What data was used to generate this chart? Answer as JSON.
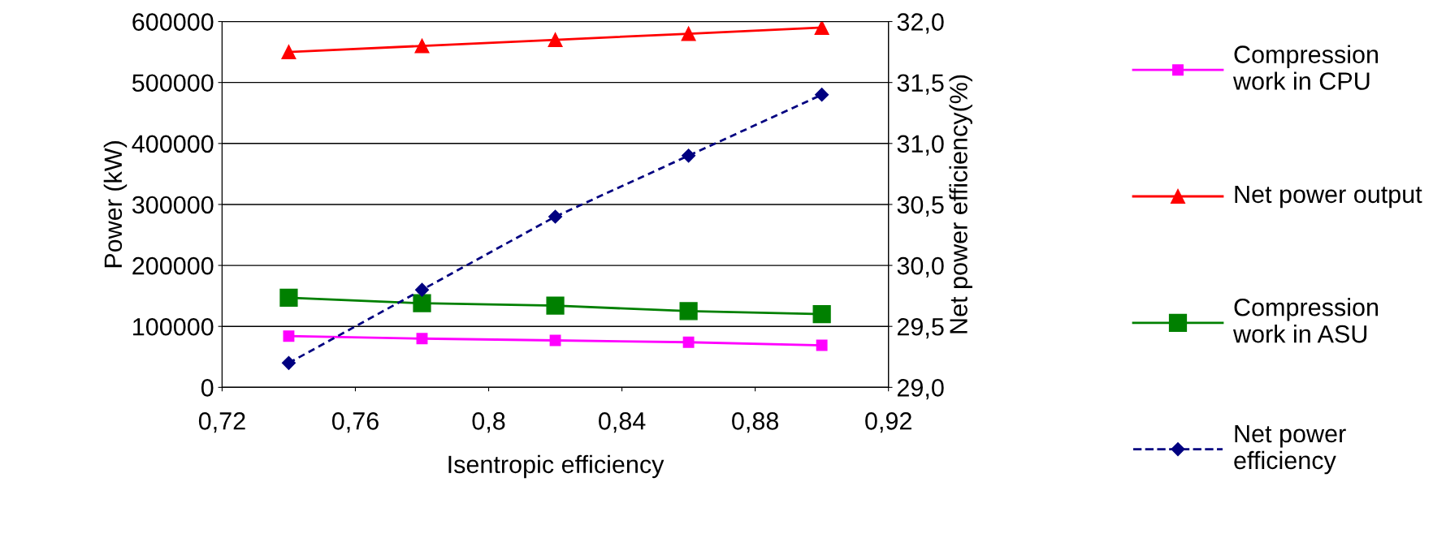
{
  "chart_data": {
    "type": "line",
    "xlabel": "Isentropic efficiency",
    "ylabel": "Power (kW)",
    "y2label": "Net power efficiency(%)",
    "x": [
      0.74,
      0.78,
      0.82,
      0.86,
      0.9
    ],
    "series": [
      {
        "name": "Compression work in CPU",
        "color": "#ff00ff",
        "marker": "square",
        "line_style": "solid",
        "values": [
          84000,
          80000,
          77000,
          74000,
          69000
        ]
      },
      {
        "name": "Net power output",
        "color": "#ff0000",
        "marker": "triangle",
        "line_style": "solid",
        "values": [
          550000,
          560000,
          570000,
          580000,
          590000
        ]
      },
      {
        "name": "Compression work in ASU",
        "color": "#008000",
        "marker": "square",
        "line_style": "solid",
        "values": [
          147000,
          138000,
          134000,
          125000,
          120000
        ]
      },
      {
        "name": "Net power efficiency",
        "color": "#000080",
        "marker": "diamond",
        "line_style": "dashed",
        "axis": "y2",
        "values": [
          29.2,
          29.8,
          30.4,
          30.9,
          31.4
        ]
      }
    ],
    "xlim": [
      0.72,
      0.92
    ],
    "xticks": [
      {
        "value": 0.72,
        "label": "0,72"
      },
      {
        "value": 0.76,
        "label": "0,76"
      },
      {
        "value": 0.8,
        "label": "0,8"
      },
      {
        "value": 0.84,
        "label": "0,84"
      },
      {
        "value": 0.88,
        "label": "0,88"
      },
      {
        "value": 0.92,
        "label": "0,92"
      }
    ],
    "ylim": [
      0,
      600000
    ],
    "yticks": [
      0,
      100000,
      200000,
      300000,
      400000,
      500000,
      600000
    ],
    "y2lim": [
      29.0,
      32.0
    ],
    "y2ticks": [
      {
        "value": 29.0,
        "label": "29,0"
      },
      {
        "value": 29.5,
        "label": "29,5"
      },
      {
        "value": 30.0,
        "label": "30,0"
      },
      {
        "value": 30.5,
        "label": "30,5"
      },
      {
        "value": 31.0,
        "label": "31,0"
      },
      {
        "value": 31.5,
        "label": "31,5"
      },
      {
        "value": 32.0,
        "label": "32,0"
      }
    ],
    "grid": "y",
    "legend": "right"
  }
}
